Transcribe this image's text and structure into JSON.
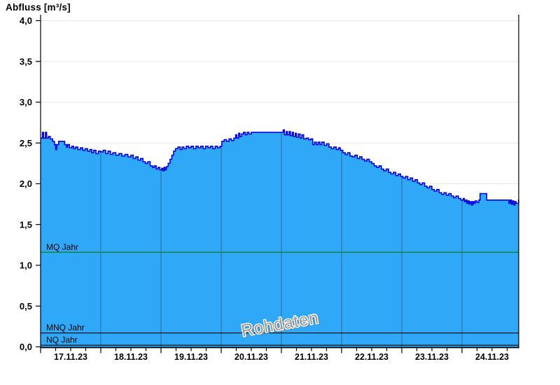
{
  "chart_data": {
    "type": "area",
    "title": "Abfluss [m³/s]",
    "watermark": "Rohdaten",
    "xlabel": "",
    "ylabel": "Abfluss [m³/s]",
    "unit": "m³/s",
    "ylim": [
      0.0,
      4.0
    ],
    "ytick_step": 0.5,
    "ytick_labels": [
      "0,0",
      "0,5",
      "1,0",
      "1,5",
      "2,0",
      "2,5",
      "3,0",
      "3,5",
      "4,0"
    ],
    "x_categories": [
      "17.11.23",
      "18.11.23",
      "19.11.23",
      "20.11.23",
      "21.11.23",
      "22.11.23",
      "23.11.23",
      "24.11.23"
    ],
    "x_span_days": 7.94,
    "x_minor_tick_hours": 6,
    "grid": {
      "horizontal": true,
      "vertical_day_lines": true
    },
    "legend_position": "none",
    "reference_lines": [
      {
        "label": "MQ Jahr",
        "value": 1.16,
        "color": "#008000"
      },
      {
        "label": "MNQ Jahr",
        "value": 0.17,
        "color": "#000000"
      },
      {
        "label": "NQ Jahr",
        "value": 0.02,
        "color": "#000000"
      }
    ],
    "colors": {
      "area_fill": "#2fa8f8",
      "curve_line": "#0404dd",
      "h_grid": "#e8e8e8",
      "v_grid_on_fill": "#2e6b96",
      "axis": "#000000",
      "watermark": "#999999",
      "watermark_outline": "#ffffff",
      "label_text": "#000000"
    },
    "series": [
      {
        "name": "Abfluss Rohdaten",
        "points": [
          [
            0.0,
            2.56
          ],
          [
            0.03,
            2.63
          ],
          [
            0.05,
            2.56
          ],
          [
            0.08,
            2.63
          ],
          [
            0.1,
            2.56
          ],
          [
            0.13,
            2.58
          ],
          [
            0.16,
            2.55
          ],
          [
            0.2,
            2.52
          ],
          [
            0.23,
            2.48
          ],
          [
            0.25,
            2.42
          ],
          [
            0.27,
            2.48
          ],
          [
            0.3,
            2.52
          ],
          [
            0.36,
            2.52
          ],
          [
            0.4,
            2.48
          ],
          [
            0.43,
            2.45
          ],
          [
            0.45,
            2.48
          ],
          [
            0.48,
            2.44
          ],
          [
            0.52,
            2.46
          ],
          [
            0.55,
            2.43
          ],
          [
            0.58,
            2.45
          ],
          [
            0.62,
            2.42
          ],
          [
            0.66,
            2.44
          ],
          [
            0.7,
            2.41
          ],
          [
            0.74,
            2.43
          ],
          [
            0.78,
            2.4
          ],
          [
            0.82,
            2.42
          ],
          [
            0.85,
            2.38
          ],
          [
            0.88,
            2.41
          ],
          [
            0.92,
            2.37
          ],
          [
            0.96,
            2.4
          ],
          [
            1.0,
            2.39
          ],
          [
            1.04,
            2.41
          ],
          [
            1.08,
            2.37
          ],
          [
            1.12,
            2.4
          ],
          [
            1.16,
            2.36
          ],
          [
            1.2,
            2.38
          ],
          [
            1.25,
            2.35
          ],
          [
            1.3,
            2.37
          ],
          [
            1.35,
            2.34
          ],
          [
            1.4,
            2.36
          ],
          [
            1.45,
            2.33
          ],
          [
            1.5,
            2.35
          ],
          [
            1.54,
            2.31
          ],
          [
            1.58,
            2.33
          ],
          [
            1.62,
            2.29
          ],
          [
            1.66,
            2.31
          ],
          [
            1.7,
            2.27
          ],
          [
            1.74,
            2.25
          ],
          [
            1.78,
            2.27
          ],
          [
            1.82,
            2.22
          ],
          [
            1.86,
            2.2
          ],
          [
            1.89,
            2.22
          ],
          [
            1.92,
            2.18
          ],
          [
            1.95,
            2.2
          ],
          [
            1.98,
            2.17
          ],
          [
            2.01,
            2.19
          ],
          [
            2.03,
            2.16
          ],
          [
            2.05,
            2.2
          ],
          [
            2.07,
            2.17
          ],
          [
            2.09,
            2.21
          ],
          [
            2.12,
            2.25
          ],
          [
            2.15,
            2.3
          ],
          [
            2.18,
            2.35
          ],
          [
            2.21,
            2.4
          ],
          [
            2.24,
            2.43
          ],
          [
            2.28,
            2.45
          ],
          [
            2.32,
            2.42
          ],
          [
            2.35,
            2.45
          ],
          [
            2.38,
            2.43
          ],
          [
            2.42,
            2.46
          ],
          [
            2.46,
            2.44
          ],
          [
            2.5,
            2.46
          ],
          [
            2.54,
            2.43
          ],
          [
            2.58,
            2.46
          ],
          [
            2.62,
            2.44
          ],
          [
            2.66,
            2.46
          ],
          [
            2.7,
            2.43
          ],
          [
            2.74,
            2.46
          ],
          [
            2.78,
            2.44
          ],
          [
            2.82,
            2.46
          ],
          [
            2.86,
            2.43
          ],
          [
            2.9,
            2.46
          ],
          [
            2.94,
            2.44
          ],
          [
            2.98,
            2.46
          ],
          [
            3.01,
            2.52
          ],
          [
            3.05,
            2.54
          ],
          [
            3.09,
            2.52
          ],
          [
            3.13,
            2.55
          ],
          [
            3.17,
            2.53
          ],
          [
            3.21,
            2.56
          ],
          [
            3.24,
            2.6
          ],
          [
            3.26,
            2.56
          ],
          [
            3.29,
            2.62
          ],
          [
            3.31,
            2.58
          ],
          [
            3.34,
            2.61
          ],
          [
            3.37,
            2.63
          ],
          [
            3.4,
            2.6
          ],
          [
            3.43,
            2.63
          ],
          [
            3.46,
            2.61
          ],
          [
            3.5,
            2.63
          ],
          [
            3.55,
            2.63
          ],
          [
            3.6,
            2.63
          ],
          [
            3.65,
            2.63
          ],
          [
            3.7,
            2.63
          ],
          [
            3.75,
            2.63
          ],
          [
            3.8,
            2.63
          ],
          [
            3.85,
            2.63
          ],
          [
            3.9,
            2.63
          ],
          [
            3.95,
            2.63
          ],
          [
            4.0,
            2.63
          ],
          [
            4.03,
            2.66
          ],
          [
            4.05,
            2.6
          ],
          [
            4.08,
            2.64
          ],
          [
            4.1,
            2.6
          ],
          [
            4.13,
            2.64
          ],
          [
            4.15,
            2.59
          ],
          [
            4.18,
            2.63
          ],
          [
            4.2,
            2.58
          ],
          [
            4.23,
            2.62
          ],
          [
            4.25,
            2.57
          ],
          [
            4.28,
            2.61
          ],
          [
            4.31,
            2.56
          ],
          [
            4.34,
            2.6
          ],
          [
            4.37,
            2.55
          ],
          [
            4.41,
            2.56
          ],
          [
            4.45,
            2.54
          ],
          [
            4.49,
            2.55
          ],
          [
            4.52,
            2.48
          ],
          [
            4.55,
            2.51
          ],
          [
            4.58,
            2.48
          ],
          [
            4.61,
            2.51
          ],
          [
            4.64,
            2.48
          ],
          [
            4.67,
            2.51
          ],
          [
            4.71,
            2.47
          ],
          [
            4.75,
            2.49
          ],
          [
            4.79,
            2.45
          ],
          [
            4.83,
            2.43
          ],
          [
            4.87,
            2.45
          ],
          [
            4.91,
            2.42
          ],
          [
            4.95,
            2.44
          ],
          [
            4.98,
            2.41
          ],
          [
            5.02,
            2.38
          ],
          [
            5.06,
            2.36
          ],
          [
            5.1,
            2.38
          ],
          [
            5.14,
            2.34
          ],
          [
            5.18,
            2.33
          ],
          [
            5.22,
            2.35
          ],
          [
            5.26,
            2.31
          ],
          [
            5.3,
            2.33
          ],
          [
            5.34,
            2.3
          ],
          [
            5.38,
            2.28
          ],
          [
            5.42,
            2.3
          ],
          [
            5.46,
            2.27
          ],
          [
            5.5,
            2.25
          ],
          [
            5.54,
            2.22
          ],
          [
            5.58,
            2.2
          ],
          [
            5.62,
            2.22
          ],
          [
            5.66,
            2.18
          ],
          [
            5.7,
            2.16
          ],
          [
            5.74,
            2.18
          ],
          [
            5.78,
            2.14
          ],
          [
            5.82,
            2.12
          ],
          [
            5.86,
            2.14
          ],
          [
            5.9,
            2.1
          ],
          [
            5.94,
            2.12
          ],
          [
            5.98,
            2.09
          ],
          [
            6.02,
            2.07
          ],
          [
            6.06,
            2.09
          ],
          [
            6.1,
            2.05
          ],
          [
            6.14,
            2.07
          ],
          [
            6.18,
            2.03
          ],
          [
            6.22,
            2.05
          ],
          [
            6.26,
            2.01
          ],
          [
            6.3,
            1.99
          ],
          [
            6.34,
            2.01
          ],
          [
            6.38,
            1.97
          ],
          [
            6.42,
            1.95
          ],
          [
            6.46,
            1.97
          ],
          [
            6.5,
            1.93
          ],
          [
            6.54,
            1.91
          ],
          [
            6.58,
            1.93
          ],
          [
            6.62,
            1.89
          ],
          [
            6.66,
            1.87
          ],
          [
            6.7,
            1.89
          ],
          [
            6.74,
            1.86
          ],
          [
            6.78,
            1.88
          ],
          [
            6.82,
            1.85
          ],
          [
            6.86,
            1.83
          ],
          [
            6.9,
            1.85
          ],
          [
            6.94,
            1.82
          ],
          [
            6.98,
            1.8
          ],
          [
            7.02,
            1.82
          ],
          [
            7.04,
            1.78
          ],
          [
            7.06,
            1.8
          ],
          [
            7.08,
            1.76
          ],
          [
            7.1,
            1.79
          ],
          [
            7.12,
            1.75
          ],
          [
            7.14,
            1.78
          ],
          [
            7.16,
            1.74
          ],
          [
            7.18,
            1.78
          ],
          [
            7.2,
            1.76
          ],
          [
            7.22,
            1.79
          ],
          [
            7.25,
            1.77
          ],
          [
            7.28,
            1.8
          ],
          [
            7.3,
            1.88
          ],
          [
            7.39,
            1.88
          ],
          [
            7.41,
            1.8
          ],
          [
            7.5,
            1.8
          ],
          [
            7.6,
            1.8
          ],
          [
            7.7,
            1.8
          ],
          [
            7.76,
            1.8
          ],
          [
            7.78,
            1.76
          ],
          [
            7.8,
            1.8
          ],
          [
            7.82,
            1.75
          ],
          [
            7.84,
            1.79
          ],
          [
            7.86,
            1.74
          ],
          [
            7.88,
            1.78
          ],
          [
            7.9,
            1.76
          ],
          [
            7.94,
            1.8
          ]
        ]
      }
    ]
  }
}
